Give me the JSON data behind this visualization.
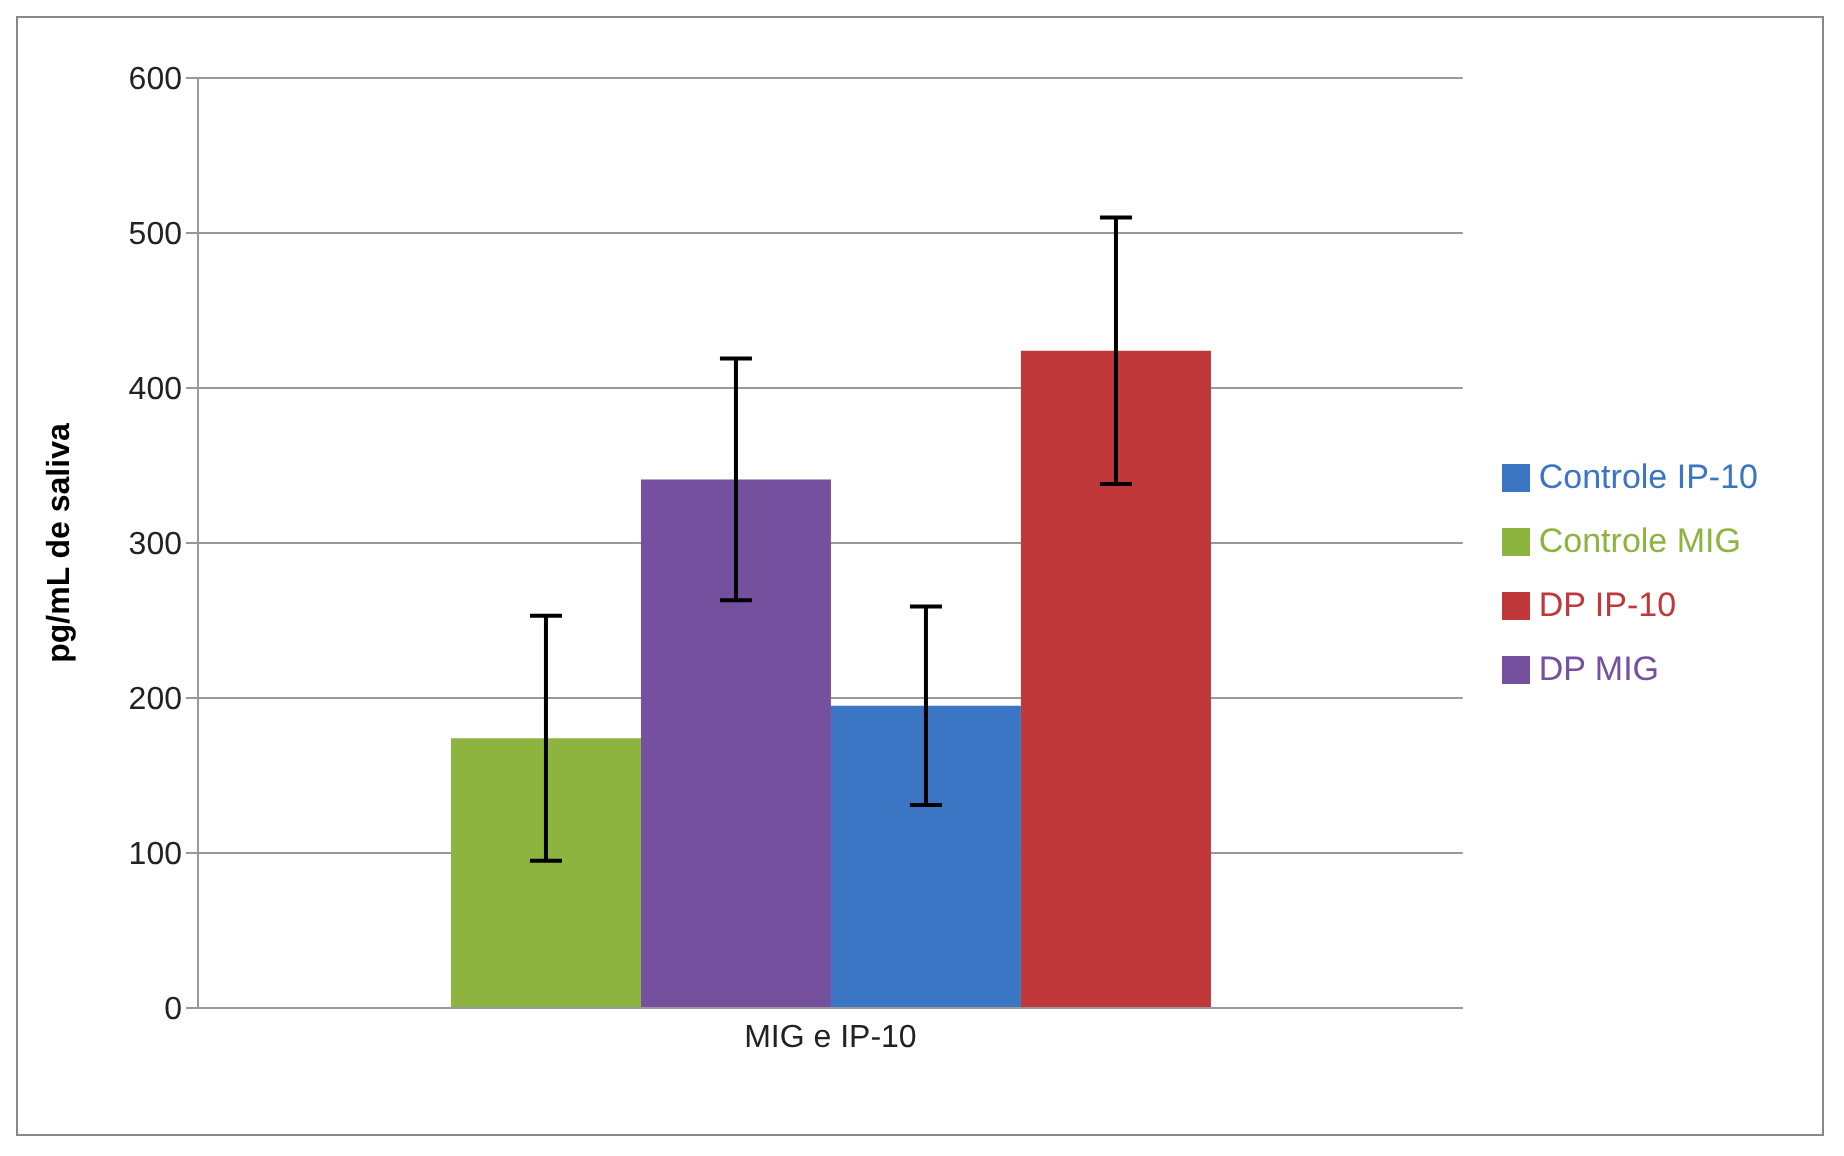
{
  "chart_data": {
    "type": "bar",
    "ylabel": "pg/mL de saliva",
    "categories": [
      "MIG e IP-10"
    ],
    "series": [
      {
        "name": "Controle MIG",
        "color": "#8db43f",
        "values": [
          174
        ],
        "errors": [
          79
        ]
      },
      {
        "name": "DP MIG",
        "color": "#74509e",
        "values": [
          341
        ],
        "errors": [
          78
        ]
      },
      {
        "name": "Controle IP-10",
        "color": "#3a76c4",
        "values": [
          195
        ],
        "errors": [
          64
        ]
      },
      {
        "name": "DP IP-10",
        "color": "#c0383a",
        "values": [
          424
        ],
        "errors": [
          86
        ]
      }
    ],
    "ylim": [
      0,
      600
    ],
    "yticks": [
      0,
      100,
      200,
      300,
      400,
      500,
      600
    ],
    "grid": "y",
    "legend": "right"
  }
}
